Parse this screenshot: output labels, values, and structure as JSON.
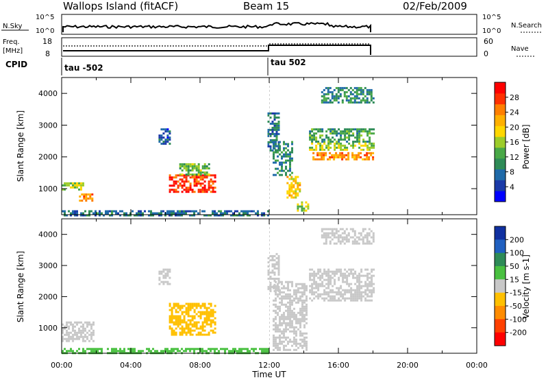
{
  "header": {
    "station": "Wallops Island (fitACF)",
    "beam": "Beam 15",
    "date": "02/Feb/2009"
  },
  "panels": {
    "nsky_label": "N.Sky",
    "nsky_ticks": [
      "10^5",
      "10^0"
    ],
    "nsearch_label": "N.Search",
    "nsearch_ticks": [
      "10^5",
      "10^0"
    ],
    "freq_label": "Freq.",
    "freq_unit": "[MHz]",
    "freq_ticks": [
      "18",
      "8"
    ],
    "nave_label": "Nave",
    "nave_ticks": [
      "60",
      "0"
    ],
    "cpid_label": "CPID",
    "cpid_segments": [
      {
        "label": "tau -502",
        "start": "00:00"
      },
      {
        "label": "tau 502",
        "start": "12:00"
      }
    ]
  },
  "chart_data": [
    {
      "type": "heatmap",
      "name": "power",
      "ylabel": "Slant Range [km]",
      "xlabel": "Time UT",
      "xlim": [
        "00:00",
        "24:00"
      ],
      "ylim": [
        180,
        4500
      ],
      "x_ticks": [
        "00:00",
        "04:00",
        "08:00",
        "12:00",
        "16:00",
        "20:00",
        "00:00"
      ],
      "y_ticks": [
        1000,
        2000,
        3000,
        4000
      ],
      "colorbar": {
        "label": "Power [dB]",
        "ticks": [
          4,
          8,
          12,
          16,
          20,
          24,
          28
        ],
        "range": [
          0,
          32
        ],
        "colors": [
          "#0000ff",
          "#1a3aa8",
          "#1f6aa8",
          "#2e8b57",
          "#49a847",
          "#9ccc2a",
          "#ffd700",
          "#ffb000",
          "#ff7f00",
          "#ff3000",
          "#ff0000"
        ]
      },
      "regions": [
        {
          "t0": 0.0,
          "t1": 1.3,
          "r0": 950,
          "r1": 1200,
          "level": 16
        },
        {
          "t0": 1.0,
          "t1": 1.8,
          "r0": 600,
          "r1": 850,
          "level": 24
        },
        {
          "t0": 5.6,
          "t1": 6.3,
          "r0": 2400,
          "r1": 2900,
          "level": 6
        },
        {
          "t0": 6.2,
          "t1": 8.9,
          "r0": 900,
          "r1": 1450,
          "level": 28
        },
        {
          "t0": 6.8,
          "t1": 8.5,
          "r0": 1450,
          "r1": 1800,
          "level": 14
        },
        {
          "t0": 11.9,
          "t1": 12.5,
          "r0": 2200,
          "r1": 3400,
          "level": 8
        },
        {
          "t0": 12.2,
          "t1": 13.3,
          "r0": 1400,
          "r1": 2500,
          "level": 10
        },
        {
          "t0": 13.0,
          "t1": 13.8,
          "r0": 700,
          "r1": 1400,
          "level": 20
        },
        {
          "t0": 13.6,
          "t1": 14.2,
          "r0": 300,
          "r1": 600,
          "level": 16
        },
        {
          "t0": 14.3,
          "t1": 18.0,
          "r0": 2500,
          "r1": 2900,
          "level": 12
        },
        {
          "t0": 14.3,
          "t1": 18.0,
          "r0": 2250,
          "r1": 2450,
          "level": 16
        },
        {
          "t0": 14.5,
          "t1": 18.0,
          "r0": 1900,
          "r1": 2150,
          "level": 24
        },
        {
          "t0": 15.0,
          "t1": 18.0,
          "r0": 3700,
          "r1": 4200,
          "level": 10
        },
        {
          "t0": 0.0,
          "t1": 12.0,
          "r0": 180,
          "r1": 320,
          "level": 8
        }
      ]
    },
    {
      "type": "heatmap",
      "name": "velocity",
      "ylabel": "Slant Range [km]",
      "xlabel": "Time UT",
      "xlim": [
        "00:00",
        "24:00"
      ],
      "ylim": [
        180,
        4500
      ],
      "x_ticks": [
        "00:00",
        "04:00",
        "08:00",
        "12:00",
        "16:00",
        "20:00",
        "00:00"
      ],
      "y_ticks": [
        1000,
        2000,
        3000,
        4000
      ],
      "colorbar": {
        "label": "Velocity [m s-1]",
        "ticks": [
          200,
          100,
          50,
          15,
          -15,
          -50,
          -100,
          -200
        ],
        "colors": [
          "#1030a0",
          "#2060c0",
          "#2e8b57",
          "#49c040",
          "#c8c8c8",
          "#ffc000",
          "#ff8c00",
          "#ff4000",
          "#ff0000"
        ]
      },
      "regions": [
        {
          "t0": 0.0,
          "t1": 1.8,
          "r0": 600,
          "r1": 1200,
          "level": 0
        },
        {
          "t0": 5.6,
          "t1": 6.3,
          "r0": 2400,
          "r1": 2900,
          "level": 0
        },
        {
          "t0": 6.2,
          "t1": 8.9,
          "r0": 800,
          "r1": 1800,
          "level": -30
        },
        {
          "t0": 11.9,
          "t1": 12.5,
          "r0": 2200,
          "r1": 3400,
          "level": 0
        },
        {
          "t0": 12.2,
          "t1": 14.2,
          "r0": 300,
          "r1": 2500,
          "level": 0
        },
        {
          "t0": 14.3,
          "t1": 18.0,
          "r0": 1900,
          "r1": 2900,
          "level": 0
        },
        {
          "t0": 15.0,
          "t1": 18.0,
          "r0": 3700,
          "r1": 4200,
          "level": 0
        },
        {
          "t0": 0.0,
          "t1": 12.0,
          "r0": 180,
          "r1": 350,
          "level": 20
        }
      ]
    }
  ]
}
